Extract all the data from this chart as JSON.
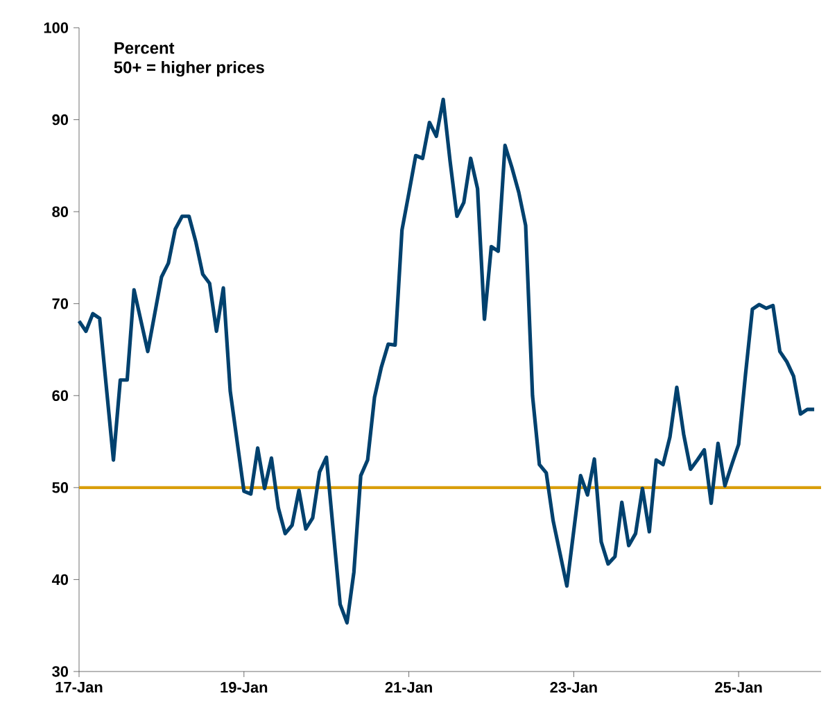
{
  "chart_data": {
    "type": "line",
    "ylabel": "Percent",
    "annotations": [
      "50+ = higher prices"
    ],
    "xlim": [
      "2017-01",
      "2026-01"
    ],
    "ylim": [
      30,
      100
    ],
    "yticks": [
      30,
      40,
      50,
      60,
      70,
      80,
      90,
      100
    ],
    "xticks": [
      {
        "value": "2017-01",
        "label": "17-Jan"
      },
      {
        "value": "2019-01",
        "label": "19-Jan"
      },
      {
        "value": "2021-01",
        "label": "21-Jan"
      },
      {
        "value": "2023-01",
        "label": "23-Jan"
      },
      {
        "value": "2025-01",
        "label": "25-Jan"
      }
    ],
    "grid": false,
    "marker": "none",
    "line_style": "solid",
    "ref_lines": [
      {
        "axis": "y",
        "value": 50,
        "color": "#d99e0b"
      }
    ],
    "series": [
      {
        "color": "#00416e",
        "x": [
          "2017-01",
          "2017-02",
          "2017-03",
          "2017-04",
          "2017-06",
          "2017-07",
          "2017-08",
          "2017-09",
          "2017-11",
          "2018-01",
          "2018-02",
          "2018-03",
          "2018-04",
          "2018-05",
          "2018-06",
          "2018-07",
          "2018-08",
          "2018-09",
          "2018-10",
          "2018-11",
          "2019-01",
          "2019-02",
          "2019-03",
          "2019-04",
          "2019-05",
          "2019-06",
          "2019-07",
          "2019-08",
          "2019-09",
          "2019-10",
          "2019-11",
          "2019-12",
          "2020-01",
          "2020-03",
          "2020-04",
          "2020-05",
          "2020-06",
          "2020-07",
          "2020-08",
          "2020-09",
          "2020-10",
          "2020-11",
          "2020-12",
          "2021-01",
          "2021-02",
          "2021-03",
          "2021-04",
          "2021-05",
          "2021-06",
          "2021-07",
          "2021-08",
          "2021-09",
          "2021-10",
          "2021-11",
          "2021-12",
          "2022-01",
          "2022-02",
          "2022-03",
          "2022-04",
          "2022-05",
          "2022-06",
          "2022-07",
          "2022-08",
          "2022-09",
          "2022-10",
          "2022-12",
          "2023-02",
          "2023-03",
          "2023-04",
          "2023-05",
          "2023-06",
          "2023-07",
          "2023-08",
          "2023-09",
          "2023-10",
          "2023-11",
          "2023-12",
          "2024-01",
          "2024-02",
          "2024-03",
          "2024-04",
          "2024-05",
          "2024-06",
          "2024-07",
          "2024-08",
          "2024-09",
          "2024-10",
          "2024-11",
          "2024-12",
          "2025-01",
          "2025-02",
          "2025-03",
          "2025-04",
          "2025-05",
          "2025-06",
          "2025-07",
          "2025-08",
          "2025-09",
          "2025-10",
          "2025-11",
          "2025-12"
        ],
        "values": [
          68.1,
          67.0,
          68.9,
          68.4,
          53.0,
          61.7,
          61.7,
          71.5,
          64.8,
          72.9,
          74.4,
          78.1,
          79.5,
          79.5,
          76.7,
          73.2,
          72.2,
          67.0,
          71.7,
          60.5,
          49.6,
          49.3,
          54.3,
          49.9,
          53.2,
          47.8,
          45.0,
          45.9,
          49.7,
          45.5,
          46.7,
          51.7,
          53.3,
          37.3,
          35.3,
          40.8,
          51.3,
          53.0,
          59.8,
          63.1,
          65.6,
          65.5,
          78.0,
          82.0,
          86.1,
          85.8,
          89.7,
          88.2,
          92.2,
          85.5,
          79.5,
          81.0,
          85.8,
          82.5,
          68.3,
          76.2,
          75.7,
          87.2,
          84.8,
          82.1,
          78.5,
          60.0,
          52.5,
          51.6,
          46.4,
          39.3,
          51.3,
          49.2,
          53.1,
          44.1,
          41.7,
          42.5,
          48.4,
          43.7,
          45.0,
          49.9,
          45.2,
          53.0,
          52.5,
          55.5,
          60.9,
          55.8,
          52.0,
          53.0,
          54.1,
          48.3,
          54.8,
          50.2,
          52.5,
          54.7,
          62.3,
          69.4,
          69.9,
          69.5,
          69.8,
          64.8,
          63.7,
          62.1,
          58.0,
          58.5,
          58.5
        ]
      }
    ]
  }
}
